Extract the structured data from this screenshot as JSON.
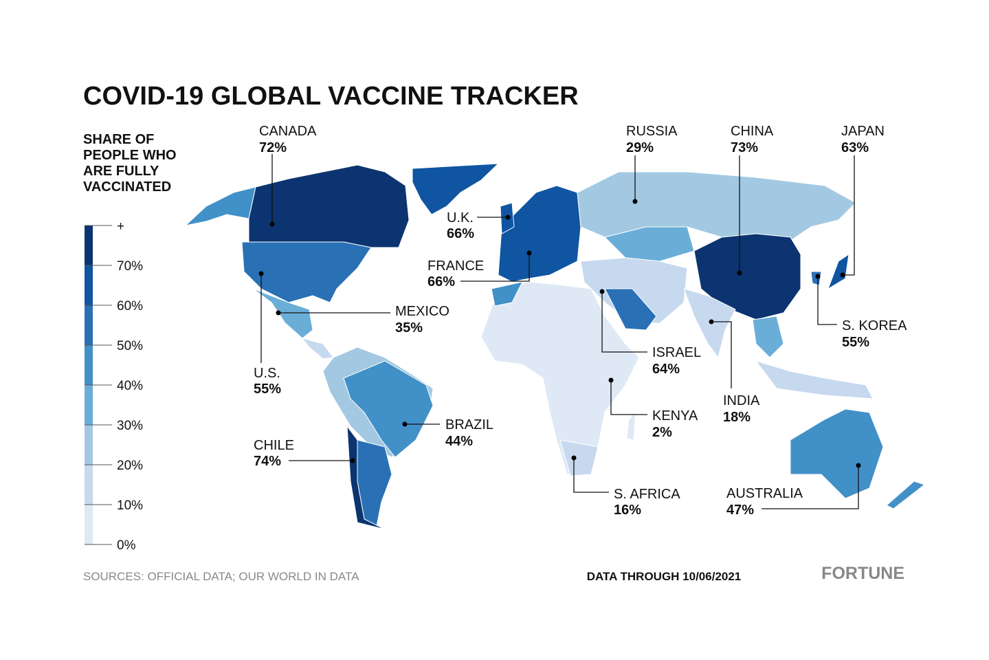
{
  "header": {
    "title": "COVID-19 GLOBAL VACCINE TRACKER"
  },
  "legend": {
    "title": [
      "SHARE OF",
      "PEOPLE WHO",
      "ARE FULLY",
      "VACCINATED"
    ],
    "ticks": [
      "+",
      "70%",
      "60%",
      "50%",
      "40%",
      "30%",
      "20%",
      "10%",
      "0%"
    ],
    "colors": [
      "#0c3470",
      "#0f55a1",
      "#2a70b5",
      "#4290c8",
      "#6aaed8",
      "#a3c9e2",
      "#c6d9ee",
      "#dfe9f6"
    ]
  },
  "callouts": [
    {
      "name": "CANADA",
      "value": "72%"
    },
    {
      "name": "RUSSIA",
      "value": "29%"
    },
    {
      "name": "CHINA",
      "value": "73%"
    },
    {
      "name": "JAPAN",
      "value": "63%"
    },
    {
      "name": "U.K.",
      "value": "66%"
    },
    {
      "name": "FRANCE",
      "value": "66%"
    },
    {
      "name": "MEXICO",
      "value": "35%"
    },
    {
      "name": "U.S.",
      "value": "55%"
    },
    {
      "name": "ISRAEL",
      "value": "64%"
    },
    {
      "name": "S. KOREA",
      "value": "55%"
    },
    {
      "name": "INDIA",
      "value": "18%"
    },
    {
      "name": "KENYA",
      "value": "2%"
    },
    {
      "name": "BRAZIL",
      "value": "44%"
    },
    {
      "name": "CHILE",
      "value": "74%"
    },
    {
      "name": "S. AFRICA",
      "value": "16%"
    },
    {
      "name": "AUSTRALIA",
      "value": "47%"
    }
  ],
  "footer": {
    "sources": "SOURCES: OFFICIAL DATA; OUR WORLD IN DATA",
    "date": "DATA THROUGH 10/06/2021",
    "brand": "FORTUNE"
  }
}
